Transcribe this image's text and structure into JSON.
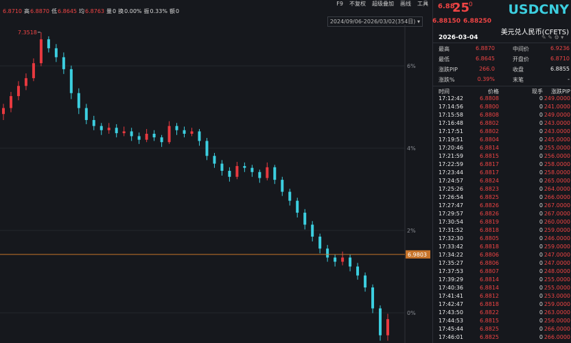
{
  "toolbar": {
    "tools": [
      "F9",
      "不复权",
      "超级叠加",
      "画线",
      "工具"
    ],
    "range": "2024/09/06-2026/03/02(354日)"
  },
  "quote_bar": {
    "last": "6.8710",
    "items": [
      {
        "label": "高",
        "value": "6.8870"
      },
      {
        "label": "低",
        "value": "6.8645"
      },
      {
        "label": "均",
        "value": "6.8763"
      },
      {
        "label": "量",
        "value": "0"
      },
      {
        "label": "换",
        "value": "0.00%"
      },
      {
        "label": "振",
        "value": "0.33%"
      },
      {
        "label": "额",
        "value": "0"
      }
    ]
  },
  "chart": {
    "type": "candlestick",
    "up_color": "#e8393f",
    "down_color": "#3ccfe0",
    "ylim": [
      6.8321,
      7.3644
    ],
    "yticks": [
      {
        "value": 7.2956,
        "label": "6%"
      },
      {
        "value": 7.1579,
        "label": "4%"
      },
      {
        "value": 7.0203,
        "label": "2%"
      },
      {
        "value": 6.8826,
        "label": "0%"
      }
    ],
    "price_line": 6.9803,
    "high_label": 7.3518,
    "high_index": 5,
    "candles": [
      [
        7.215,
        7.232,
        7.205,
        7.225
      ],
      [
        7.225,
        7.252,
        7.218,
        7.245
      ],
      [
        7.245,
        7.27,
        7.238,
        7.262
      ],
      [
        7.262,
        7.283,
        7.255,
        7.275
      ],
      [
        7.275,
        7.308,
        7.27,
        7.3
      ],
      [
        7.3,
        7.3518,
        7.295,
        7.34
      ],
      [
        7.34,
        7.345,
        7.318,
        7.325
      ],
      [
        7.325,
        7.332,
        7.302,
        7.31
      ],
      [
        7.31,
        7.318,
        7.282,
        7.29
      ],
      [
        7.29,
        7.296,
        7.24,
        7.25
      ],
      [
        7.25,
        7.258,
        7.215,
        7.225
      ],
      [
        7.225,
        7.232,
        7.198,
        7.205
      ],
      [
        7.205,
        7.212,
        7.188,
        7.195
      ],
      [
        7.195,
        7.2,
        7.18,
        7.188
      ],
      [
        7.188,
        7.2,
        7.182,
        7.192
      ],
      [
        7.192,
        7.198,
        7.176,
        7.183
      ],
      [
        7.183,
        7.194,
        7.178,
        7.186
      ],
      [
        7.186,
        7.192,
        7.17,
        7.178
      ],
      [
        7.178,
        7.184,
        7.165,
        7.172
      ],
      [
        7.172,
        7.19,
        7.168,
        7.182
      ],
      [
        7.182,
        7.188,
        7.17,
        7.176
      ],
      [
        7.176,
        7.18,
        7.16,
        7.168
      ],
      [
        7.168,
        7.203,
        7.165,
        7.195
      ],
      [
        7.195,
        7.2,
        7.18,
        7.188
      ],
      [
        7.188,
        7.194,
        7.176,
        7.182
      ],
      [
        7.182,
        7.192,
        7.178,
        7.186
      ],
      [
        7.186,
        7.19,
        7.162,
        7.17
      ],
      [
        7.17,
        7.175,
        7.138,
        7.145
      ],
      [
        7.145,
        7.15,
        7.125,
        7.132
      ],
      [
        7.132,
        7.138,
        7.112,
        7.12
      ],
      [
        7.12,
        7.126,
        7.102,
        7.11
      ],
      [
        7.11,
        7.135,
        7.106,
        7.128
      ],
      [
        7.128,
        7.134,
        7.118,
        7.125
      ],
      [
        7.125,
        7.13,
        7.11,
        7.118
      ],
      [
        7.118,
        7.122,
        7.1,
        7.108
      ],
      [
        7.108,
        7.134,
        7.104,
        7.126
      ],
      [
        7.126,
        7.13,
        7.098,
        7.105
      ],
      [
        7.105,
        7.11,
        7.078,
        7.085
      ],
      [
        7.085,
        7.09,
        7.062,
        7.07
      ],
      [
        7.07,
        7.075,
        7.042,
        7.05
      ],
      [
        7.05,
        7.056,
        7.022,
        7.03
      ],
      [
        7.03,
        7.036,
        7.002,
        7.01
      ],
      [
        7.01,
        7.015,
        6.982,
        6.99
      ],
      [
        6.99,
        6.996,
        6.968,
        6.975
      ],
      [
        6.975,
        6.98,
        6.96,
        6.968
      ],
      [
        6.968,
        6.985,
        6.962,
        6.975
      ],
      [
        6.975,
        6.98,
        6.952,
        6.96
      ],
      [
        6.96,
        6.966,
        6.938,
        6.945
      ],
      [
        6.945,
        6.95,
        6.918,
        6.925
      ],
      [
        6.925,
        6.93,
        6.882,
        6.89
      ],
      [
        6.89,
        6.895,
        6.836,
        6.845
      ],
      [
        6.845,
        6.881,
        6.836,
        6.872
      ]
    ]
  },
  "panel": {
    "price_head": "6.88",
    "price_big": "25",
    "price_sup": "0",
    "bid": "6.88150",
    "ask": "6.88250",
    "symbol": "USDCNY",
    "name": "美元兑人民币(CFETS)",
    "date": "2026-03-04",
    "stats": [
      [
        "最高",
        "6.8870",
        "中间价",
        "6.9236"
      ],
      [
        "最低",
        "6.8645",
        "开盘价",
        "6.8710"
      ],
      [
        "涨跌PIP",
        "266.0",
        "收盘",
        "6.8855"
      ],
      [
        "涨跌%",
        "0.39%",
        "末笔",
        "-"
      ]
    ],
    "trade_header": [
      "时间",
      "价格",
      "现手",
      "涨跌PIP"
    ],
    "trades": [
      [
        "17:12:42",
        "6.8808",
        "0",
        "249.0000"
      ],
      [
        "17:14:56",
        "6.8800",
        "0",
        "241.0000"
      ],
      [
        "17:15:58",
        "6.8808",
        "0",
        "249.0000"
      ],
      [
        "17:16:48",
        "6.8802",
        "0",
        "243.0000"
      ],
      [
        "17:17:51",
        "6.8802",
        "0",
        "243.0000"
      ],
      [
        "17:19:51",
        "6.8804",
        "0",
        "245.0000"
      ],
      [
        "17:20:46",
        "6.8814",
        "0",
        "255.0000"
      ],
      [
        "17:21:59",
        "6.8815",
        "0",
        "256.0000"
      ],
      [
        "17:22:59",
        "6.8817",
        "0",
        "258.0000"
      ],
      [
        "17:23:44",
        "6.8817",
        "0",
        "258.0000"
      ],
      [
        "17:24:57",
        "6.8824",
        "0",
        "265.0000"
      ],
      [
        "17:25:26",
        "6.8823",
        "0",
        "264.0000"
      ],
      [
        "17:26:54",
        "6.8825",
        "0",
        "266.0000"
      ],
      [
        "17:27:47",
        "6.8826",
        "0",
        "267.0000"
      ],
      [
        "17:29:57",
        "6.8826",
        "0",
        "267.0000"
      ],
      [
        "17:30:54",
        "6.8819",
        "0",
        "260.0000"
      ],
      [
        "17:31:52",
        "6.8818",
        "0",
        "259.0000"
      ],
      [
        "17:32:30",
        "6.8805",
        "0",
        "246.0000"
      ],
      [
        "17:33:42",
        "6.8818",
        "0",
        "259.0000"
      ],
      [
        "17:34:22",
        "6.8806",
        "0",
        "247.0000"
      ],
      [
        "17:35:27",
        "6.8806",
        "0",
        "247.0000"
      ],
      [
        "17:37:53",
        "6.8807",
        "0",
        "248.0000"
      ],
      [
        "17:39:29",
        "6.8814",
        "0",
        "255.0000"
      ],
      [
        "17:40:36",
        "6.8814",
        "0",
        "255.0000"
      ],
      [
        "17:41:41",
        "6.8812",
        "0",
        "253.0000"
      ],
      [
        "17:42:47",
        "6.8818",
        "0",
        "259.0000"
      ],
      [
        "17:43:50",
        "6.8822",
        "0",
        "263.0000"
      ],
      [
        "17:44:53",
        "6.8815",
        "0",
        "256.0000"
      ],
      [
        "17:45:44",
        "6.8825",
        "0",
        "266.0000"
      ],
      [
        "17:46:01",
        "6.8825",
        "0",
        "266.0000"
      ]
    ]
  }
}
